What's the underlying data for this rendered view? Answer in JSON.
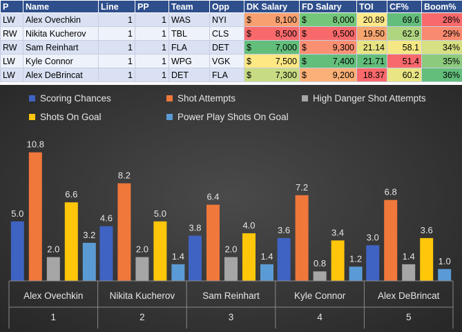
{
  "table": {
    "headers": [
      "P",
      "Name",
      "Line",
      "PP",
      "Team",
      "Opp",
      "DK Salary",
      "FD Salary",
      "TOI",
      "CF%",
      "Boom%"
    ],
    "currency": "$",
    "rows": [
      {
        "P": "LW",
        "Name": "Alex Ovechkin",
        "Line": "1",
        "PP": "1",
        "Team": "WAS",
        "Opp": "NYI",
        "DK": "8,100",
        "FD": "8,000",
        "TOI": "20.89",
        "CF": "69.6",
        "Boom": "28%",
        "colors": {
          "DK": "#f8a070",
          "FD": "#74c77a",
          "TOI": "#ffe88a",
          "CF": "#63be7b",
          "Boom": "#f8696b"
        }
      },
      {
        "P": "RW",
        "Name": "Nikita Kucherov",
        "Line": "1",
        "PP": "1",
        "Team": "TBL",
        "Opp": "CLS",
        "DK": "8,500",
        "FD": "9,500",
        "TOI": "19.50",
        "CF": "62.9",
        "Boom": "29%",
        "colors": {
          "DK": "#f8696b",
          "FD": "#f8696b",
          "TOI": "#f6a56f",
          "CF": "#b0d581",
          "Boom": "#f98a6f"
        }
      },
      {
        "P": "RW",
        "Name": "Sam Reinhart",
        "Line": "1",
        "PP": "1",
        "Team": "FLA",
        "Opp": "DET",
        "DK": "7,000",
        "FD": "9,300",
        "TOI": "21.14",
        "CF": "58.1",
        "Boom": "34%",
        "colors": {
          "DK": "#63be7b",
          "FD": "#f99072",
          "TOI": "#e6e483",
          "CF": "#f5e884",
          "Boom": "#d7e082"
        }
      },
      {
        "P": "LW",
        "Name": "Kyle Connor",
        "Line": "1",
        "PP": "1",
        "Team": "WPG",
        "Opp": "VGK",
        "DK": "7,500",
        "FD": "7,400",
        "TOI": "21.71",
        "CF": "51.4",
        "Boom": "35%",
        "colors": {
          "DK": "#fde883",
          "FD": "#63be7b",
          "TOI": "#63be7b",
          "CF": "#f8696b",
          "Boom": "#8ccb7e"
        }
      },
      {
        "P": "LW",
        "Name": "Alex DeBrincat",
        "Line": "1",
        "PP": "1",
        "Team": "DET",
        "Opp": "FLA",
        "DK": "7,300",
        "FD": "9,200",
        "TOI": "18.37",
        "CF": "60.2",
        "Boom": "36%",
        "colors": {
          "DK": "#c7db82",
          "FD": "#fbb077",
          "TOI": "#f8696b",
          "CF": "#e9e583",
          "Boom": "#63be7b"
        }
      }
    ]
  },
  "chart_data": {
    "type": "bar",
    "categories": [
      {
        "name": "Alex Ovechkin",
        "index": "1"
      },
      {
        "name": "Nikita Kucherov",
        "index": "2"
      },
      {
        "name": "Sam Reinhart",
        "index": "3"
      },
      {
        "name": "Kyle Connor",
        "index": "4"
      },
      {
        "name": "Alex DeBrincat",
        "index": "5"
      }
    ],
    "series": [
      {
        "name": "Scoring Chances",
        "color": "#3f63c2",
        "values": [
          5.0,
          4.6,
          3.8,
          3.6,
          3.0
        ]
      },
      {
        "name": "Shot Attempts",
        "color": "#f0783a",
        "values": [
          10.8,
          8.2,
          6.4,
          7.2,
          6.8
        ]
      },
      {
        "name": "High Danger Shot Attempts",
        "color": "#a6a6a6",
        "values": [
          2.0,
          2.0,
          2.0,
          0.8,
          1.4
        ]
      },
      {
        "name": "Shots On Goal",
        "color": "#ffc60a",
        "values": [
          6.6,
          5.0,
          4.0,
          3.4,
          3.6
        ]
      },
      {
        "name": "Power Play Shots On Goal",
        "color": "#5b9bd5",
        "values": [
          3.2,
          1.4,
          1.4,
          1.2,
          1.0
        ]
      }
    ],
    "ylim": [
      0,
      12
    ],
    "legend": "top",
    "grid": false,
    "data_labels": true
  }
}
